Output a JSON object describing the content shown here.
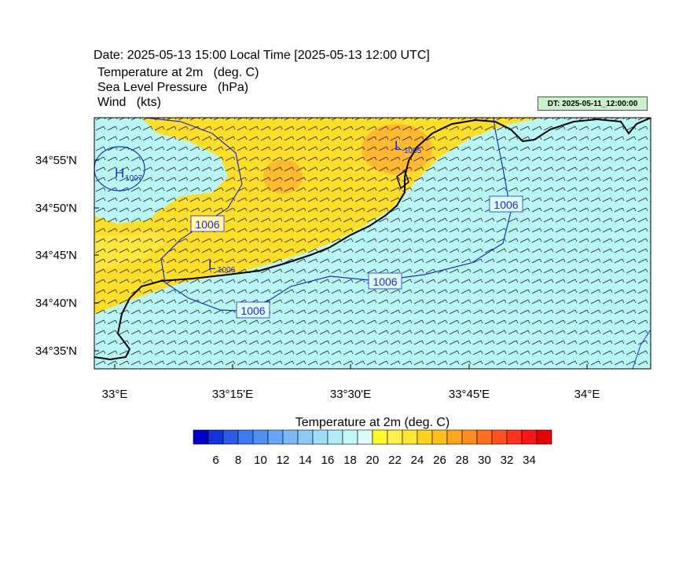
{
  "header": {
    "date_line": "Date: 2025-05-13  15:00 Local Time [2025-05-13  12:00 UTC]",
    "fields": [
      {
        "name": "Temperature at 2m",
        "unit": "(deg. C)"
      },
      {
        "name": "Sea Level Pressure",
        "unit": "(hPa)"
      },
      {
        "name": "Wind",
        "unit": "(kts)"
      }
    ],
    "dt_badge": "DT: 2025-05-11_12:00:00"
  },
  "map": {
    "lat_ticks": [
      "34°55'N",
      "34°50'N",
      "34°45'N",
      "34°40'N",
      "34°35'N"
    ],
    "lon_ticks": [
      "33°E",
      "33°15'E",
      "33°30'E",
      "33°45'E",
      "34°E"
    ],
    "pressure_labels": [
      "1006",
      "1006",
      "1006",
      "1006"
    ],
    "centers": [
      {
        "letter": "H",
        "value": "1007"
      },
      {
        "letter": "L",
        "value": "1006"
      },
      {
        "letter": "L",
        "value": "1005"
      }
    ],
    "colors": {
      "sea_cool": "#b8f5f5",
      "land_warm": "#ffde2a",
      "hot": "#ffa032",
      "isobar": "#1e2fc8",
      "coast": "#000000"
    }
  },
  "colorbar": {
    "title": "Temperature at 2m  (deg. C)",
    "labels": [
      "6",
      "8",
      "10",
      "12",
      "14",
      "16",
      "18",
      "20",
      "22",
      "24",
      "26",
      "28",
      "30",
      "32",
      "34"
    ],
    "colors": [
      "#0000c8",
      "#1432dc",
      "#2a5ae6",
      "#3c7af0",
      "#4e8ef5",
      "#64a6f7",
      "#7ab8f7",
      "#8acaf7",
      "#9edcf7",
      "#b0ecf7",
      "#c4f7f7",
      "#ddfafa",
      "#fffa28",
      "#fff050",
      "#ffe632",
      "#ffd21e",
      "#ffbe1e",
      "#ffa51e",
      "#ff8c1e",
      "#ff6e1e",
      "#ff501e",
      "#ff321e",
      "#ff1414",
      "#e60000"
    ]
  }
}
